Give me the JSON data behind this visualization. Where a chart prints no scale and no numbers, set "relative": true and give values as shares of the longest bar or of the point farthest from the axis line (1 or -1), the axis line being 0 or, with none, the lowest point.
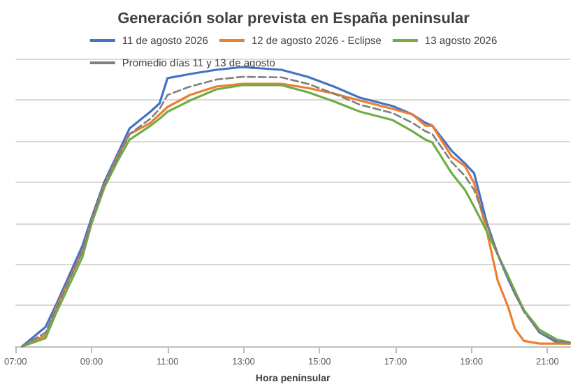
{
  "chart_data": {
    "type": "line",
    "title": "Generación solar prevista en España peninsular",
    "xlabel": "Hora peninsular",
    "relative": true,
    "grid": "y",
    "legend": "top",
    "marker": "none",
    "x": [
      7.17,
      7.79,
      8.07,
      8.76,
      9.0,
      9.34,
      9.69,
      10.0,
      10.55,
      10.79,
      11.0,
      11.59,
      12.28,
      12.97,
      14.0,
      14.69,
      15.38,
      16.07,
      16.93,
      17.45,
      17.79,
      17.97,
      18.48,
      18.83,
      19.07,
      19.41,
      19.69,
      19.97,
      20.14,
      20.38,
      20.79,
      21.24,
      21.59
    ],
    "xlim": [
      7,
      21.6
    ],
    "xticks": [
      {
        "value": 7,
        "label": "07:00"
      },
      {
        "value": 9,
        "label": "09:00"
      },
      {
        "value": 11,
        "label": "11:00"
      },
      {
        "value": 13,
        "label": "13:00"
      },
      {
        "value": 15,
        "label": "15:00"
      },
      {
        "value": 17,
        "label": "17:00"
      },
      {
        "value": 19,
        "label": "19:00"
      },
      {
        "value": 21,
        "label": "21:00"
      }
    ],
    "series": [
      {
        "name": "11 de agosto 2026",
        "color": "#4472c4",
        "line_style": "solid",
        "values": [
          0,
          0.07,
          0.15,
          0.36,
          0.46,
          0.59,
          0.69,
          0.78,
          0.84,
          0.87,
          0.96,
          0.975,
          0.99,
          1,
          0.99,
          0.965,
          0.93,
          0.89,
          0.86,
          0.83,
          0.8,
          0.79,
          0.7,
          0.655,
          0.62,
          0.44,
          0.33,
          0.24,
          0.19,
          0.13,
          0.05,
          0.015,
          0.01
        ]
      },
      {
        "name": "12 de agosto 2026 - Eclipse",
        "color": "#ed7d31",
        "line_style": "solid",
        "values": [
          0,
          0.04,
          0.14,
          0.34,
          0.45,
          0.58,
          0.68,
          0.76,
          0.8,
          0.83,
          0.857,
          0.9,
          0.93,
          0.94,
          0.94,
          0.925,
          0.905,
          0.88,
          0.85,
          0.83,
          0.79,
          0.79,
          0.68,
          0.645,
          0.585,
          0.41,
          0.236,
          0.14,
          0.064,
          0.02,
          0.01,
          0.01,
          0.01
        ]
      },
      {
        "name": "13 agosto 2026",
        "color": "#70ad47",
        "line_style": "solid",
        "values": [
          0,
          0.03,
          0.12,
          0.32,
          0.44,
          0.57,
          0.665,
          0.74,
          0.79,
          0.815,
          0.84,
          0.88,
          0.92,
          0.935,
          0.935,
          0.91,
          0.877,
          0.84,
          0.81,
          0.77,
          0.74,
          0.73,
          0.62,
          0.56,
          0.5,
          0.41,
          0.33,
          0.25,
          0.2,
          0.13,
          0.06,
          0.025,
          0.015
        ]
      },
      {
        "name": "Promedio días 11 y 13 de agosto",
        "color": "#7f7f7f",
        "line_style": "dashed",
        "values": [
          0,
          0.05,
          0.135,
          0.34,
          0.45,
          0.58,
          0.677,
          0.76,
          0.815,
          0.85,
          0.9,
          0.93,
          0.955,
          0.965,
          0.963,
          0.94,
          0.905,
          0.865,
          0.835,
          0.8,
          0.77,
          0.76,
          0.66,
          0.61,
          0.56,
          0.44,
          0.33,
          0.24,
          0.19,
          0.125,
          0.05,
          0.02,
          0.012
        ]
      }
    ]
  }
}
